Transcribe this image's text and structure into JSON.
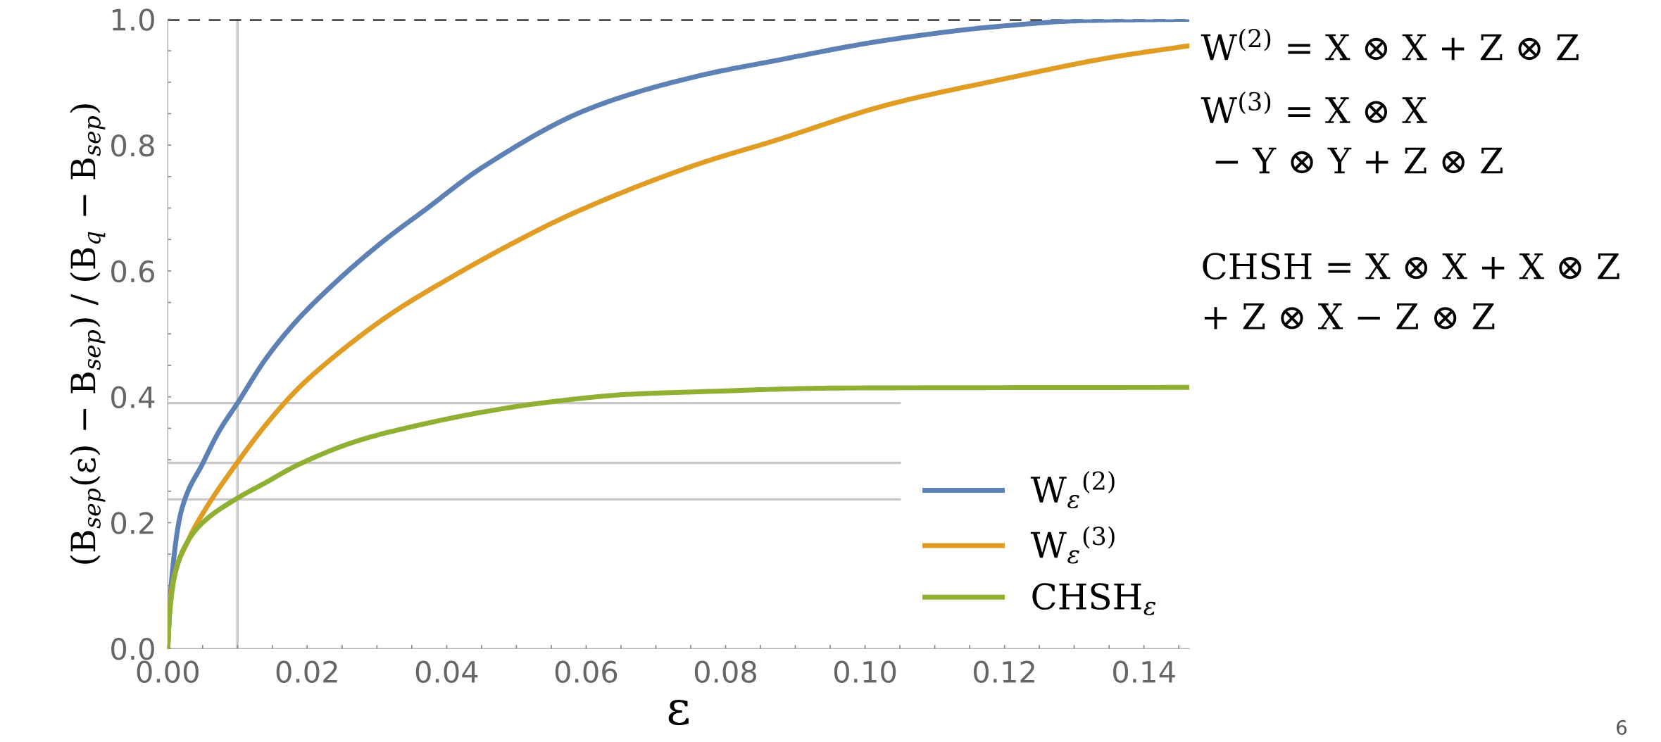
{
  "chart_data": {
    "type": "line",
    "xlabel": "ε",
    "ylabel": "(B$_{sep}$(ε) − B$_{sep}$) / (B$_{q}$ − B$_{sep}$)",
    "xlim": [
      0,
      0.1465
    ],
    "ylim": [
      0,
      1.0
    ],
    "xticks": [
      {
        "value": 0,
        "label": "0.00"
      },
      {
        "value": 0.005,
        "label": null
      },
      {
        "value": 0.01,
        "label": null
      },
      {
        "value": 0.015,
        "label": null
      },
      {
        "value": 0.02,
        "label": "0.02"
      },
      {
        "value": 0.025,
        "label": null
      },
      {
        "value": 0.03,
        "label": null
      },
      {
        "value": 0.035,
        "label": null
      },
      {
        "value": 0.04,
        "label": "0.04"
      },
      {
        "value": 0.045,
        "label": null
      },
      {
        "value": 0.05,
        "label": null
      },
      {
        "value": 0.055,
        "label": null
      },
      {
        "value": 0.06,
        "label": "0.06"
      },
      {
        "value": 0.065,
        "label": null
      },
      {
        "value": 0.07,
        "label": null
      },
      {
        "value": 0.075,
        "label": null
      },
      {
        "value": 0.08,
        "label": "0.08"
      },
      {
        "value": 0.085,
        "label": null
      },
      {
        "value": 0.09,
        "label": null
      },
      {
        "value": 0.095,
        "label": null
      },
      {
        "value": 0.1,
        "label": "0.10"
      },
      {
        "value": 0.105,
        "label": null
      },
      {
        "value": 0.11,
        "label": null
      },
      {
        "value": 0.115,
        "label": null
      },
      {
        "value": 0.12,
        "label": "0.12"
      },
      {
        "value": 0.125,
        "label": null
      },
      {
        "value": 0.13,
        "label": null
      },
      {
        "value": 0.135,
        "label": null
      },
      {
        "value": 0.14,
        "label": "0.14"
      },
      {
        "value": 0.145,
        "label": null
      }
    ],
    "yticks": [
      {
        "value": 0,
        "label": "0.0"
      },
      {
        "value": 0.05,
        "label": null
      },
      {
        "value": 0.1,
        "label": null
      },
      {
        "value": 0.15,
        "label": null
      },
      {
        "value": 0.2,
        "label": "0.2"
      },
      {
        "value": 0.25,
        "label": null
      },
      {
        "value": 0.3,
        "label": null
      },
      {
        "value": 0.35,
        "label": null
      },
      {
        "value": 0.4,
        "label": "0.4"
      },
      {
        "value": 0.45,
        "label": null
      },
      {
        "value": 0.5,
        "label": null
      },
      {
        "value": 0.55,
        "label": null
      },
      {
        "value": 0.6,
        "label": "0.6"
      },
      {
        "value": 0.65,
        "label": null
      },
      {
        "value": 0.7,
        "label": null
      },
      {
        "value": 0.75,
        "label": null
      },
      {
        "value": 0.8,
        "label": "0.8"
      },
      {
        "value": 0.85,
        "label": null
      },
      {
        "value": 0.9,
        "label": null
      },
      {
        "value": 0.95,
        "label": null
      },
      {
        "value": 1.0,
        "label": "1.0"
      }
    ],
    "series": [
      {
        "color": "#c8c8c8",
        "x": [
          0,
          0.105
        ],
        "values": [
          0.39,
          0.39
        ]
      },
      {
        "color": "#c8c8c8",
        "x": [
          0,
          0.105
        ],
        "values": [
          0.295,
          0.295
        ]
      },
      {
        "color": "#c8c8c8",
        "x": [
          0,
          0.105
        ],
        "values": [
          0.237,
          0.237
        ]
      },
      {
        "name": "W$_{ε}$$^{(2)}$",
        "color": "#5e81b5",
        "x": [
          0,
          0.00045,
          0.002,
          0.0051,
          0.0074,
          0.01,
          0.0141,
          0.0185,
          0.023,
          0.0275,
          0.0319,
          0.0364,
          0.0453,
          0.0607,
          0.0761,
          0.087,
          0.1032,
          0.1194,
          0.1316,
          0.1465
        ],
        "values": [
          0,
          0.096,
          0.221,
          0.296,
          0.346,
          0.39,
          0.461,
          0.521,
          0.571,
          0.616,
          0.656,
          0.693,
          0.766,
          0.859,
          0.91,
          0.934,
          0.967,
          0.989,
          0.998,
          1.0
        ]
      },
      {
        "name": "W$_{ε}$$^{(3)}$",
        "color": "#e19c24",
        "x": [
          0,
          0.00045,
          0.0029,
          0.0051,
          0.01,
          0.0141,
          0.0185,
          0.023,
          0.0319,
          0.0408,
          0.0498,
          0.0578,
          0.0761,
          0.087,
          0.1032,
          0.1194,
          0.1356,
          0.1465
        ],
        "values": [
          0,
          0.086,
          0.171,
          0.216,
          0.296,
          0.356,
          0.411,
          0.456,
          0.531,
          0.591,
          0.646,
          0.69,
          0.77,
          0.807,
          0.864,
          0.904,
          0.94,
          0.958
        ]
      },
      {
        "name": "CHSH$_{ε}$",
        "color": "#8fb032",
        "x": [
          0,
          0.0002,
          0.0011,
          0.0029,
          0.0051,
          0.01,
          0.0141,
          0.0185,
          0.0275,
          0.0364,
          0.0453,
          0.0542,
          0.0662,
          0.0761,
          0.0967,
          0.1465
        ],
        "values": [
          0,
          0.046,
          0.121,
          0.171,
          0.201,
          0.239,
          0.264,
          0.291,
          0.331,
          0.356,
          0.376,
          0.391,
          0.404,
          0.408,
          0.414,
          0.415
        ]
      }
    ],
    "ref_lines": [
      {
        "axis": "y",
        "value": 1.0,
        "color": "#000000",
        "line_style": "dashed"
      },
      {
        "axis": "x",
        "value": 0.01,
        "color": "#c8c8c8",
        "line_style": "solid"
      }
    ],
    "legend": "bottom right",
    "annotations": [
      "W$^{(2)}$ = X ⊗ X + Z ⊗ Z",
      "W$^{(3)}$ = X ⊗ X\n − Y ⊗ Y + Z ⊗ Z",
      "CHSH = X ⊗ X + X ⊗ Z\n+ Z ⊗ X − Z ⊗ Z",
      "6"
    ]
  }
}
